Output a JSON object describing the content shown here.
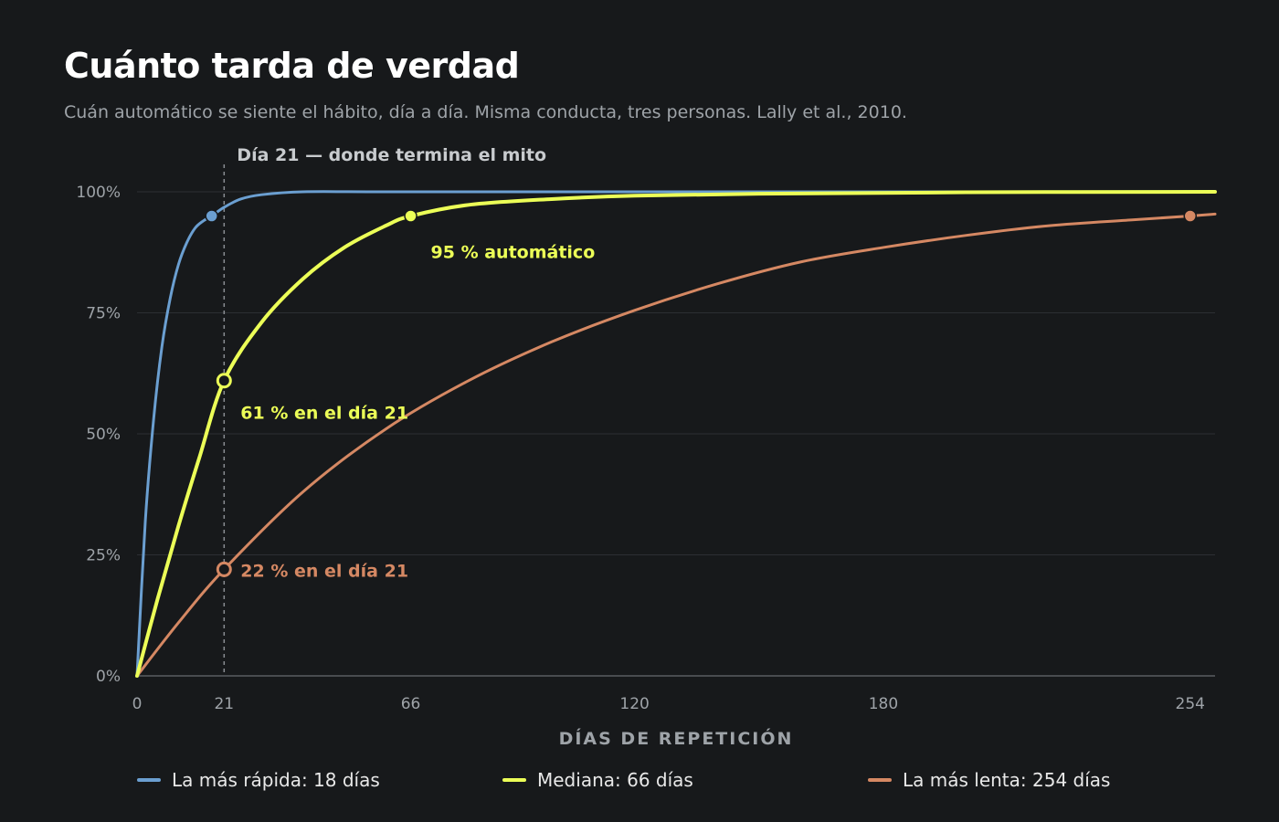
{
  "title": "Cuánto tarda de verdad",
  "subtitle": "Cuán automático se siente el hábito, día a día. Misma conducta, tres personas. Lally et al., 2010.",
  "colors": {
    "background": "#17191b",
    "fast": "#6b9fd1",
    "median": "#ecff57",
    "slow": "#d58863",
    "grid": "#2c2f33",
    "axis": "#5a5e63",
    "muted": "#9ea3a8"
  },
  "chart_data": {
    "type": "line",
    "xlabel": "DÍAS DE REPETICIÓN",
    "ylabel": "",
    "xlim": [
      0,
      260
    ],
    "ylim": [
      0,
      100
    ],
    "x_ticks": [
      0,
      21,
      66,
      120,
      180,
      254
    ],
    "x_tick_labels": [
      "0",
      "21",
      "66",
      "120",
      "180",
      "254"
    ],
    "y_ticks": [
      0,
      25,
      50,
      75,
      100
    ],
    "y_tick_labels": [
      "0%",
      "25%",
      "50%",
      "75%",
      "100%"
    ],
    "grid": true,
    "series": [
      {
        "name": "La más rápida: 18 días",
        "key": "fast",
        "points": [
          [
            0,
            0
          ],
          [
            2,
            32
          ],
          [
            4,
            53
          ],
          [
            6,
            68
          ],
          [
            8,
            78
          ],
          [
            10,
            85
          ],
          [
            12,
            89.5
          ],
          [
            14,
            92.5
          ],
          [
            16,
            94
          ],
          [
            18,
            95
          ],
          [
            21,
            96.8
          ],
          [
            25,
            98.5
          ],
          [
            30,
            99.4
          ],
          [
            40,
            100
          ],
          [
            60,
            100
          ],
          [
            120,
            100
          ],
          [
            260,
            100
          ]
        ]
      },
      {
        "name": "Mediana: 66 días",
        "key": "median",
        "points": [
          [
            0,
            0
          ],
          [
            5,
            16
          ],
          [
            10,
            31
          ],
          [
            15,
            45
          ],
          [
            21,
            61
          ],
          [
            30,
            73
          ],
          [
            40,
            82
          ],
          [
            50,
            88.5
          ],
          [
            60,
            93
          ],
          [
            66,
            95
          ],
          [
            80,
            97.3
          ],
          [
            100,
            98.5
          ],
          [
            120,
            99.2
          ],
          [
            150,
            99.6
          ],
          [
            200,
            99.9
          ],
          [
            260,
            100
          ]
        ]
      },
      {
        "name": "La más lenta: 254 días",
        "key": "slow",
        "points": [
          [
            0,
            0
          ],
          [
            10,
            11
          ],
          [
            21,
            22
          ],
          [
            40,
            38
          ],
          [
            60,
            51
          ],
          [
            80,
            61
          ],
          [
            100,
            69
          ],
          [
            120,
            75.5
          ],
          [
            140,
            81
          ],
          [
            160,
            85.5
          ],
          [
            180,
            88.5
          ],
          [
            200,
            91
          ],
          [
            220,
            93
          ],
          [
            240,
            94.2
          ],
          [
            254,
            95
          ],
          [
            260,
            95.4
          ]
        ]
      }
    ],
    "markers": [
      {
        "series": "fast",
        "x": 18,
        "y": 95,
        "style": "filled"
      },
      {
        "series": "median",
        "x": 66,
        "y": 95,
        "style": "filled"
      },
      {
        "series": "slow",
        "x": 254,
        "y": 95,
        "style": "filled"
      },
      {
        "series": "median",
        "x": 21,
        "y": 61,
        "style": "hollow"
      },
      {
        "series": "slow",
        "x": 21,
        "y": 22,
        "style": "hollow"
      }
    ],
    "reference_line": {
      "x": 21,
      "label": "Día 21 — donde termina el mito"
    },
    "annotations": [
      {
        "series": "median",
        "x": 66,
        "y": 95,
        "text": "95 % automático"
      },
      {
        "series": "median",
        "x": 21,
        "y": 61,
        "text": "61 % en el día 21"
      },
      {
        "series": "slow",
        "x": 21,
        "y": 22,
        "text": "22 % en el día 21"
      }
    ]
  },
  "legend": [
    {
      "key": "fast",
      "label": "La más rápida: 18 días"
    },
    {
      "key": "median",
      "label": "Mediana: 66 días"
    },
    {
      "key": "slow",
      "label": "La más lenta: 254 días"
    }
  ]
}
